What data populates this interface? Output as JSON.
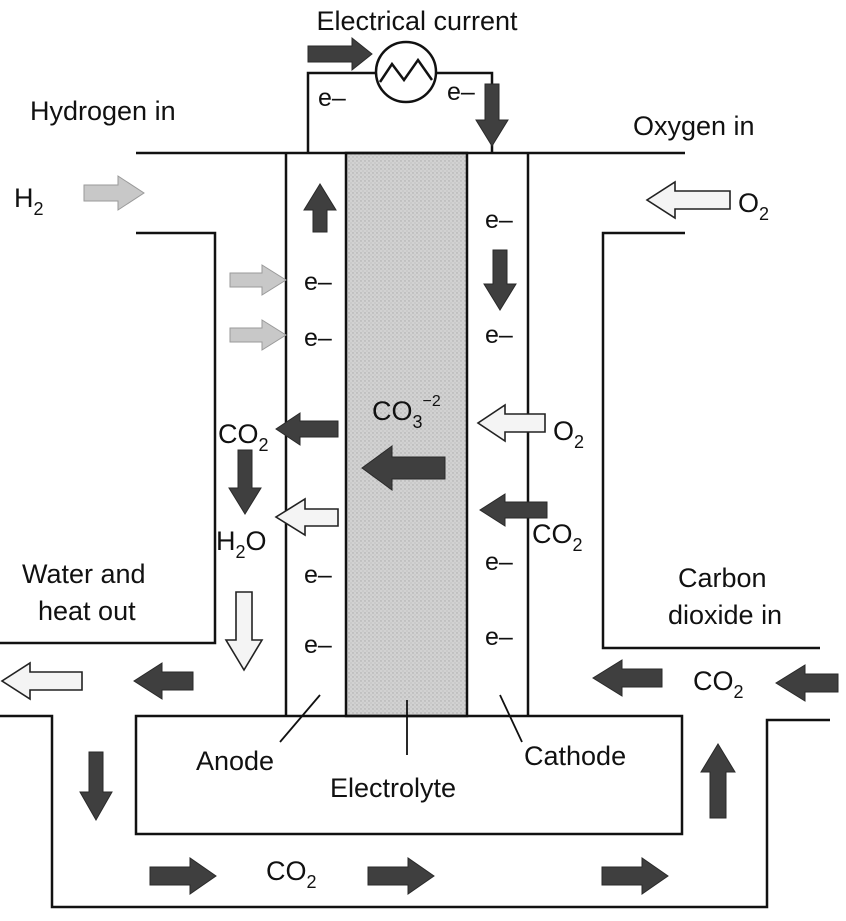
{
  "labels": {
    "electrical_current": "Electrical current",
    "hydrogen_in": "Hydrogen in",
    "oxygen_in": "Oxygen in",
    "water_heat_out_1": "Water and",
    "water_heat_out_2": "heat out",
    "carbon_dioxide_in_1": "Carbon",
    "carbon_dioxide_in_2": "dioxide in",
    "anode": "Anode",
    "electrolyte": "Electrolyte",
    "cathode": "Cathode"
  },
  "species": {
    "electron": "e–",
    "h2_base": "H",
    "h2_sub": "2",
    "o2_base": "O",
    "o2_sub": "2",
    "co2_base": "CO",
    "co2_sub": "2",
    "h2o_h": "H",
    "h2o_sub": "2",
    "h2o_o": "O",
    "co3_base": "CO",
    "co3_sub": "3",
    "co3_sup": "−2"
  },
  "colors": {
    "line": "#111111",
    "dark_arrow": "#3a3a3a",
    "light_arrow_fill": "#f2f2f2",
    "mid_arrow": "#b8b8b8",
    "electrolyte_fill": "#cfcfcf"
  },
  "icons": {
    "current_source": "resistor-circle-icon"
  }
}
